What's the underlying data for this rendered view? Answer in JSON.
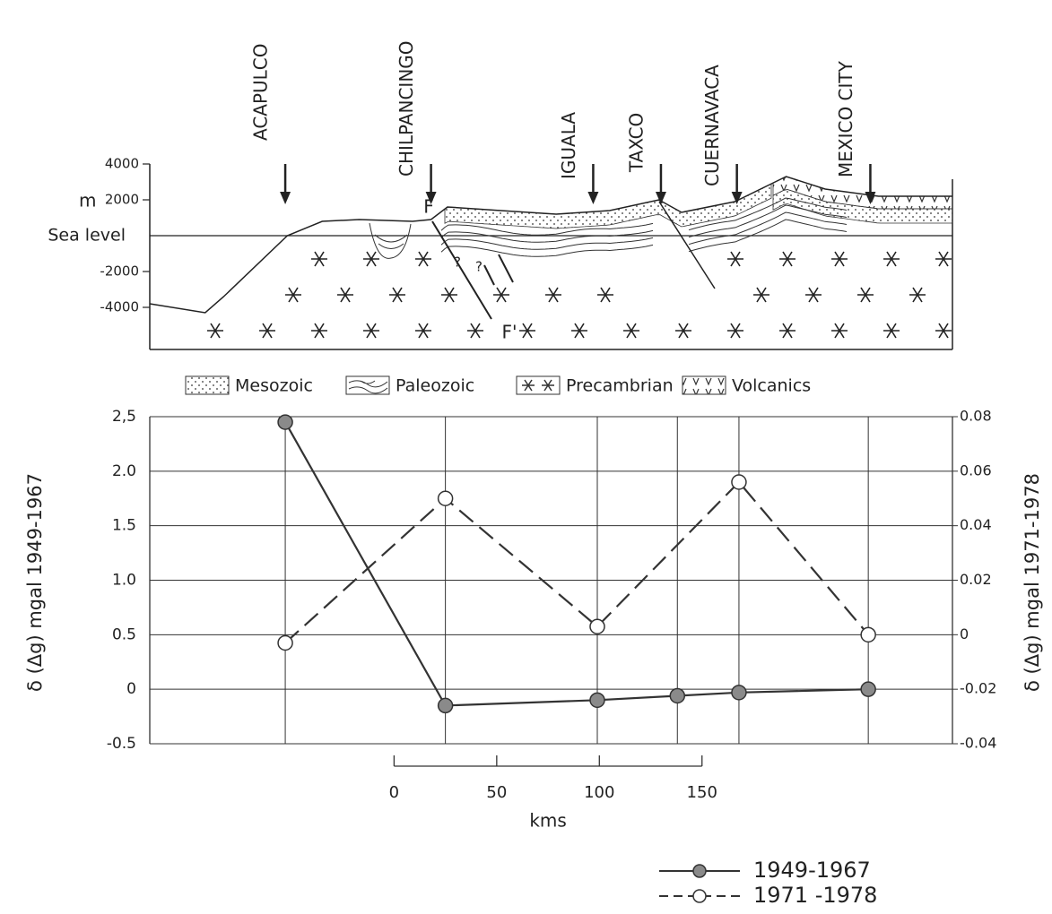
{
  "chart_data": [
    {
      "type": "section",
      "ylabel": "m",
      "xlim": [
        -119,
        272
      ],
      "ylim": [
        -6350,
        4000
      ],
      "yticks": [
        4000,
        2000,
        {
          "value": 0,
          "label": "Sea level"
        },
        -2000,
        -4000
      ],
      "places": {
        "names": [
          "ACAPULCO",
          "CHILPANCINGO",
          "IGUALA",
          "TAXCO",
          "CUERNAVACA",
          "MEXICO CITY"
        ],
        "x": [
          -53,
          18,
          97,
          130,
          167,
          232
        ]
      },
      "surface": {
        "x": [
          -119,
          -92,
          -83,
          -52,
          -35,
          -17,
          9,
          18,
          26,
          52,
          79,
          105,
          129,
          140,
          166,
          191,
          210,
          236,
          272
        ],
        "values": [
          -3800,
          -4300,
          -3400,
          0,
          800,
          900,
          800,
          900,
          1600,
          1400,
          1200,
          1400,
          2000,
          1300,
          1900,
          3300,
          2600,
          2200,
          2200
        ]
      },
      "units": [
        "Mesozoic",
        "Paleozoic",
        "Precambrian",
        "Volcanics"
      ],
      "annotations": [
        "F",
        "F'",
        "?",
        "?"
      ]
    },
    {
      "type": "line",
      "ylabel": "δ (Δg) mgal 1949-1967",
      "y2label": "δ (Δg) mgal 1971-1978",
      "xlabel": "kms",
      "xlim": [
        -119,
        272
      ],
      "xticks": [
        0,
        50,
        100,
        150
      ],
      "ylim": [
        -0.5,
        2.5
      ],
      "yticks": [
        {
          "value": 2.5,
          "label": "2,5"
        },
        {
          "value": 2,
          "label": "2.0"
        },
        {
          "value": 1.5,
          "label": "1.5"
        },
        {
          "value": 1,
          "label": "1.0"
        },
        {
          "value": 0.5,
          "label": "0.5"
        },
        0,
        -0.5
      ],
      "y2lim": [
        -0.04,
        0.08
      ],
      "y2ticks": [
        0.08,
        0.06,
        0.04,
        0.02,
        0,
        -0.02,
        -0.04
      ],
      "grid": true,
      "legend": "bottom-right",
      "series": [
        {
          "name": "1949-1967",
          "color": "#333333",
          "marker_fill": "#8a8a8a",
          "dashed": false,
          "x": [
            -53,
            25,
            99,
            138,
            168,
            231
          ],
          "values": [
            2.45,
            -0.15,
            -0.1,
            -0.06,
            -0.03,
            0
          ]
        },
        {
          "name": "1971 -1978",
          "color": "#333333",
          "marker_fill": "#ffffff",
          "dashed": true,
          "axis": "y2",
          "x": [
            -53,
            25,
            99,
            168,
            231
          ],
          "values": [
            -0.003,
            0.05,
            0.003,
            0.056,
            0
          ]
        }
      ]
    }
  ]
}
